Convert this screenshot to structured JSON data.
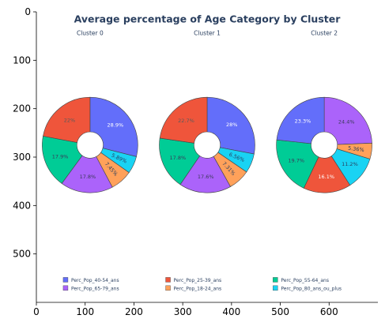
{
  "chart_data": {
    "type": "pie",
    "title": "Average percentage of Age Category by Cluster",
    "xticks": [
      0,
      100,
      200,
      300,
      400,
      500,
      600
    ],
    "yticks": [
      0,
      100,
      200,
      300,
      400,
      500
    ],
    "xlim": [
      0,
      700
    ],
    "ylim": [
      600,
      0
    ],
    "legend": "bottom",
    "categories": [
      "Perc_Pop_40-54_ans",
      "Perc_Pop_65-79_ans",
      "Perc_Pop_25-39_ans",
      "Perc_Pop_18-24_ans",
      "Perc_Pop_55-64_ans",
      "Perc_Pop_80_ans_ou_plus"
    ],
    "colors": {
      "Perc_Pop_40-54_ans": "#636efa",
      "Perc_Pop_65-79_ans": "#ab63fa",
      "Perc_Pop_25-39_ans": "#ef553b",
      "Perc_Pop_18-24_ans": "#ffa15a",
      "Perc_Pop_55-64_ans": "#00cc96",
      "Perc_Pop_80_ans_ou_plus": "#19d3f3"
    },
    "pies": [
      {
        "name": "Cluster 0",
        "slices": [
          {
            "category": "Perc_Pop_40-54_ans",
            "value": 28.9,
            "label": "28.9%"
          },
          {
            "category": "Perc_Pop_80_ans_ou_plus",
            "value": 5.89,
            "label": "5.89%"
          },
          {
            "category": "Perc_Pop_18-24_ans",
            "value": 7.45,
            "label": "7.45%"
          },
          {
            "category": "Perc_Pop_65-79_ans",
            "value": 17.8,
            "label": "17.8%"
          },
          {
            "category": "Perc_Pop_55-64_ans",
            "value": 17.9,
            "label": "17.9%"
          },
          {
            "category": "Perc_Pop_25-39_ans",
            "value": 22.0,
            "label": "22%"
          }
        ]
      },
      {
        "name": "Cluster 1",
        "slices": [
          {
            "category": "Perc_Pop_40-54_ans",
            "value": 28.0,
            "label": "28%"
          },
          {
            "category": "Perc_Pop_80_ans_ou_plus",
            "value": 6.56,
            "label": "6.56%"
          },
          {
            "category": "Perc_Pop_18-24_ans",
            "value": 7.31,
            "label": "7.31%"
          },
          {
            "category": "Perc_Pop_65-79_ans",
            "value": 17.6,
            "label": "17.6%"
          },
          {
            "category": "Perc_Pop_55-64_ans",
            "value": 17.8,
            "label": "17.8%"
          },
          {
            "category": "Perc_Pop_25-39_ans",
            "value": 22.7,
            "label": "22.7%"
          }
        ]
      },
      {
        "name": "Cluster 2",
        "slices": [
          {
            "category": "Perc_Pop_65-79_ans",
            "value": 24.4,
            "label": "24.4%"
          },
          {
            "category": "Perc_Pop_18-24_ans",
            "value": 5.36,
            "label": "5.36%"
          },
          {
            "category": "Perc_Pop_80_ans_ou_plus",
            "value": 11.2,
            "label": "11.2%"
          },
          {
            "category": "Perc_Pop_25-39_ans",
            "value": 16.1,
            "label": "16.1%"
          },
          {
            "category": "Perc_Pop_55-64_ans",
            "value": 19.7,
            "label": "19.7%"
          },
          {
            "category": "Perc_Pop_40-54_ans",
            "value": 23.3,
            "label": "23.3%"
          }
        ]
      }
    ]
  }
}
